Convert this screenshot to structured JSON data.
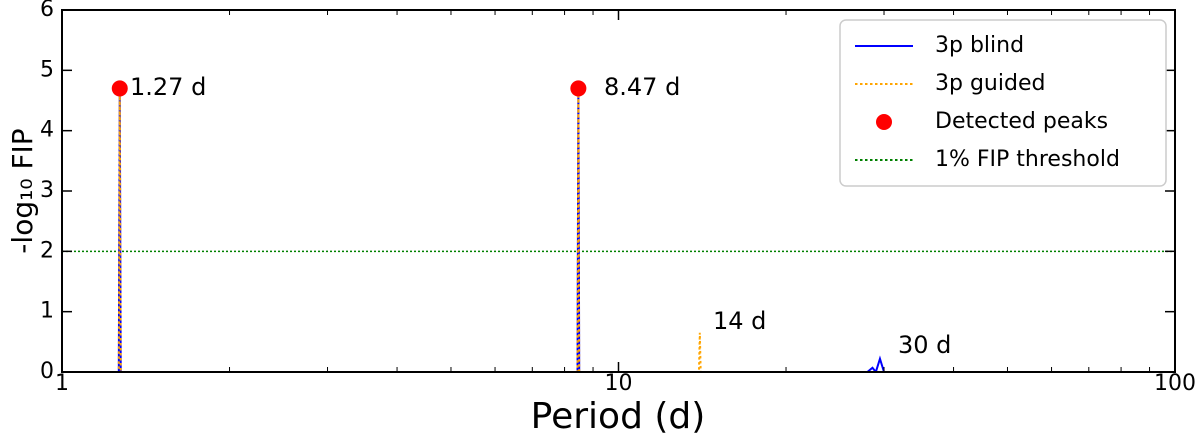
{
  "chart_data": {
    "type": "line",
    "xlabel": "Period (d)",
    "ylabel": "-log₁₀ FIP",
    "xscale": "log",
    "xlim": [
      1,
      100
    ],
    "xticks": [
      1,
      10,
      100
    ],
    "xminorticks": [
      2,
      3,
      4,
      5,
      6,
      7,
      8,
      9,
      20,
      30,
      40,
      50,
      60,
      70,
      80,
      90
    ],
    "ylim": [
      0,
      6
    ],
    "yticks": [
      0,
      1,
      2,
      3,
      4,
      5,
      6
    ],
    "legend": "upper right",
    "series": [
      {
        "name": "3p blind",
        "color": "#0000ff",
        "style": "solid",
        "x": [
          1,
          1.265,
          1.27,
          1.275,
          8.44,
          8.47,
          8.5,
          28,
          28.6,
          29,
          29.5,
          30,
          30.5,
          100
        ],
        "values": [
          0,
          0,
          4.7,
          0,
          0,
          4.7,
          0,
          0,
          0.07,
          0,
          0.22,
          0,
          0,
          0
        ]
      },
      {
        "name": "3p guided",
        "color": "#ffa500",
        "style": "dotted",
        "x": [
          1,
          1.265,
          1.27,
          1.275,
          8.44,
          8.47,
          8.5,
          13.95,
          14,
          14.05,
          100
        ],
        "values": [
          0,
          0,
          4.7,
          0,
          0,
          4.7,
          0,
          0,
          0.65,
          0,
          0
        ]
      }
    ],
    "peaks": {
      "name": "Detected peaks",
      "color": "#ff0000",
      "x": [
        1.27,
        8.47
      ],
      "values": [
        4.7,
        4.7
      ]
    },
    "threshold": {
      "name": "1% FIP threshold",
      "color": "#008000",
      "value": 2
    },
    "annotations": [
      "1.27 d",
      "8.47 d",
      "14 d",
      "30 d"
    ]
  }
}
